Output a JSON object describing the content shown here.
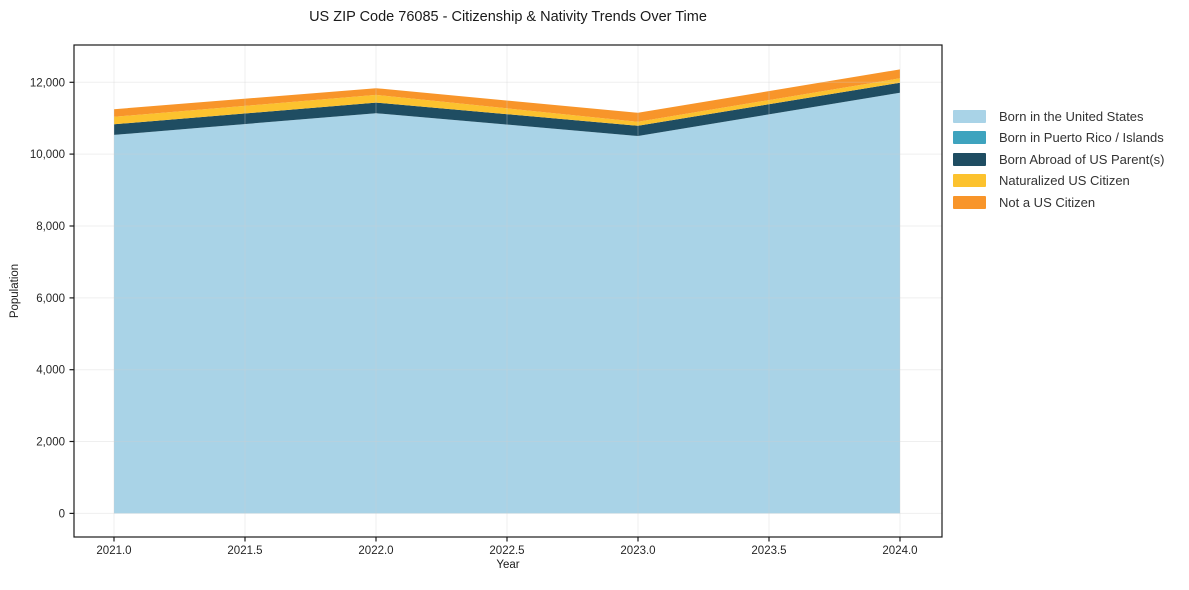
{
  "chart_data": {
    "type": "area",
    "stacked": true,
    "title": "US ZIP Code 76085 - Citizenship & Nativity Trends Over Time",
    "xlabel": "Year",
    "ylabel": "Population",
    "x": [
      2021,
      2022,
      2023,
      2024
    ],
    "series": [
      {
        "name": "Born in the United States",
        "color": "#A9D3E7",
        "values": [
          10535,
          11140,
          10505,
          11710
        ]
      },
      {
        "name": "Born in Puerto Rico / Islands",
        "color": "#3EA3BE",
        "values": [
          0,
          0,
          0,
          0
        ]
      },
      {
        "name": "Born Abroad of US Parent(s)",
        "color": "#1F4D62",
        "values": [
          295,
          295,
          285,
          280
        ]
      },
      {
        "name": "Naturalized US Citizen",
        "color": "#FCC22E",
        "values": [
          210,
          215,
          110,
          120
        ]
      },
      {
        "name": "Not a US Citizen",
        "color": "#F8952A",
        "values": [
          210,
          185,
          250,
          250
        ]
      }
    ],
    "totals": [
      11250,
      11835,
      11150,
      12360
    ],
    "xtick_values": [
      2021.0,
      2021.5,
      2022.0,
      2022.5,
      2023.0,
      2023.5,
      2024.0
    ],
    "xtick_labels": [
      "2021.0",
      "2021.5",
      "2022.0",
      "2022.5",
      "2023.0",
      "2023.5",
      "2024.0"
    ],
    "ytick_values": [
      0,
      2000,
      4000,
      6000,
      8000,
      10000,
      12000
    ],
    "ytick_labels": [
      "0",
      "2,000",
      "4,000",
      "6,000",
      "8,000",
      "10,000",
      "12,000"
    ],
    "xlim": [
      2021,
      2024
    ],
    "ylim": [
      0,
      12000
    ],
    "grid": true,
    "legend_position": "outside-right",
    "colors": {
      "grid": "#cfcfcf",
      "spine": "#1a1a1a",
      "tick_text": "#262626",
      "background": "#ffffff"
    }
  }
}
